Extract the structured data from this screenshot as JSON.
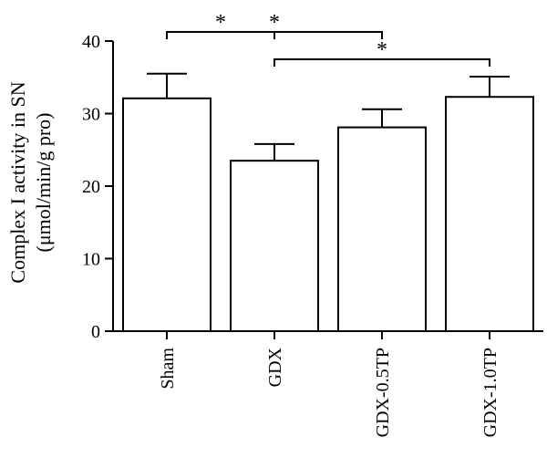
{
  "chart_data": {
    "type": "bar",
    "title": "",
    "xlabel": "",
    "ylabel": "Complex I activity in SN",
    "ylabel_units": "(μmol/min/g pro)",
    "ylim": [
      0,
      40
    ],
    "yticks": [
      0,
      10,
      20,
      30,
      40
    ],
    "categories": [
      "Sham",
      "GDX",
      "GDX-0.5TP",
      "GDX-1.0TP"
    ],
    "values": [
      32.1,
      23.5,
      28.1,
      32.3
    ],
    "errors": [
      3.4,
      2.3,
      2.5,
      2.8
    ],
    "significance": [
      {
        "from": "Sham",
        "to": "GDX",
        "label": "*"
      },
      {
        "from": "GDX",
        "to": "GDX-1.0TP",
        "label": "*"
      },
      {
        "from": "Sham",
        "to": "GDX-0.5TP",
        "label": "*"
      }
    ],
    "grid": false,
    "legend": "none"
  }
}
